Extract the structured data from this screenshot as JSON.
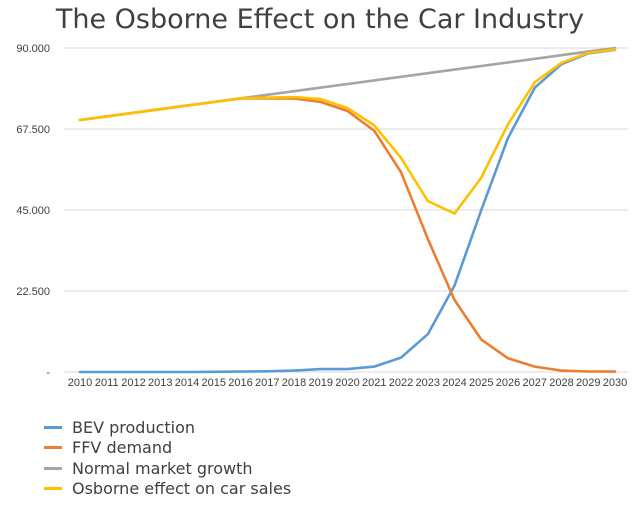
{
  "chart_data": {
    "type": "line",
    "title": "The Osborne Effect on the Car Industry",
    "xlabel": "",
    "ylabel": "",
    "ylim": [
      0,
      90000
    ],
    "y_ticks": [
      {
        "value": 0,
        "label": "-"
      },
      {
        "value": 22500,
        "label": "22.500"
      },
      {
        "value": 45000,
        "label": "45.000"
      },
      {
        "value": 67500,
        "label": "67.500"
      },
      {
        "value": 90000,
        "label": "90.000"
      }
    ],
    "grid": "horizontal",
    "legend_position": "bottom-left",
    "x": [
      "2010",
      "2011",
      "2012",
      "2013",
      "2014",
      "2015",
      "2016",
      "2017",
      "2018",
      "2019",
      "2020",
      "2021",
      "2022",
      "2023",
      "2024",
      "2025",
      "2026",
      "2027",
      "2028",
      "2029",
      "2030"
    ],
    "series": [
      {
        "name": "BEV production",
        "color": "#5B9BD5",
        "values": [
          0,
          0,
          0,
          0,
          0,
          50,
          100,
          200,
          400,
          800,
          800,
          1500,
          4000,
          10500,
          24000,
          45000,
          65000,
          79000,
          85500,
          88500,
          89500
        ]
      },
      {
        "name": "FFV demand",
        "color": "#ED7D31",
        "values": [
          70000,
          71000,
          72000,
          73000,
          74000,
          75000,
          76000,
          76000,
          76000,
          75000,
          72500,
          67000,
          55500,
          37000,
          20000,
          9000,
          3800,
          1500,
          400,
          150,
          100
        ]
      },
      {
        "name": "Normal market growth",
        "color": "#A5A5A5",
        "values": [
          70000,
          71000,
          72000,
          73000,
          74000,
          75000,
          76000,
          77000,
          78000,
          79000,
          80000,
          81000,
          82000,
          83000,
          84000,
          85000,
          86000,
          87000,
          88000,
          89000,
          90000
        ]
      },
      {
        "name": "Osborne effect on car sales",
        "color": "#FFC000",
        "values": [
          70000,
          71000,
          72000,
          73000,
          74000,
          75000,
          76000,
          76200,
          76400,
          75800,
          73300,
          68500,
          59500,
          47500,
          44000,
          54000,
          68800,
          80500,
          85900,
          88650,
          89600
        ]
      }
    ]
  }
}
